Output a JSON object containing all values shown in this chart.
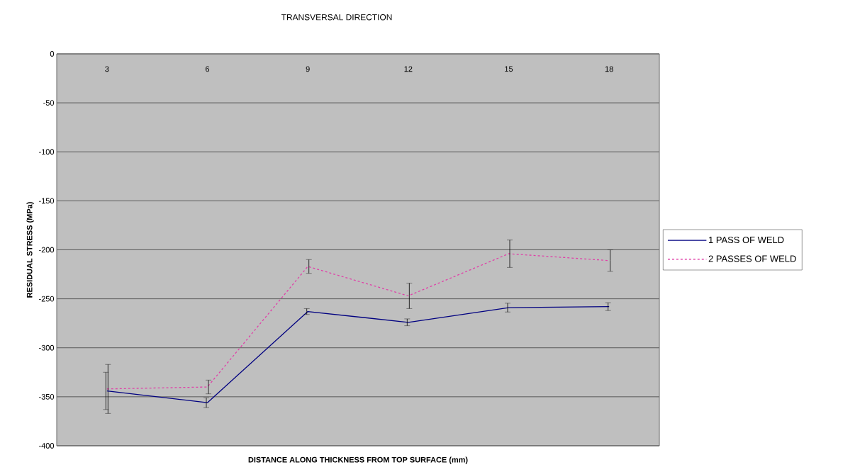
{
  "chart_data": {
    "type": "line",
    "title": "TRANSVERSAL DIRECTION",
    "xlabel": "DISTANCE ALONG THICKNESS FROM TOP SURFACE (mm)",
    "ylabel": "RESIDUAL STRESS (MPa)",
    "categories": [
      "3",
      "6",
      "9",
      "12",
      "15",
      "18"
    ],
    "series": [
      {
        "name": "1 PASS OF WELD",
        "color": "#000080",
        "line_style": "solid",
        "values": [
          -344,
          -356,
          -263,
          -274,
          -259,
          -258
        ],
        "errors": [
          19,
          5,
          3,
          3.5,
          4.5,
          4
        ]
      },
      {
        "name": "2 PASSES OF WELD",
        "color": "#e040a8",
        "line_style": "dashed",
        "values": [
          -342,
          -340,
          -217,
          -247,
          -204,
          -211
        ],
        "errors": [
          25,
          7,
          7,
          13,
          14,
          11
        ]
      }
    ],
    "ylim": [
      -400,
      0
    ],
    "yticks": [
      -400,
      -350,
      -300,
      -250,
      -200,
      -150,
      -100,
      -50,
      0
    ],
    "grid": "y",
    "legend": "right",
    "marker": "none"
  }
}
